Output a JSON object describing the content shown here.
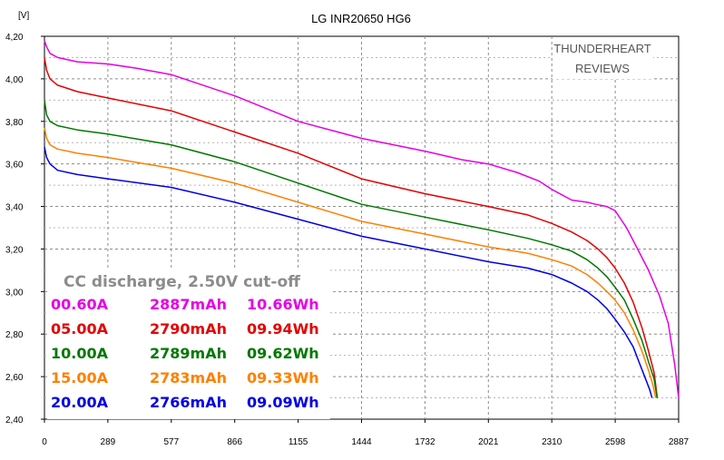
{
  "chart_data": {
    "type": "line",
    "title": "LG INR20650 HG6",
    "ylabel": "[V]",
    "xlabel": "",
    "xlim": [
      0,
      2887
    ],
    "ylim": [
      2.4,
      4.2
    ],
    "x_ticks": [
      "0",
      "289",
      "577",
      "866",
      "1155",
      "1444",
      "1732",
      "2021",
      "2310",
      "2598",
      "2887"
    ],
    "y_ticks": [
      "2,40",
      "2,60",
      "2,80",
      "3,00",
      "3,20",
      "3,40",
      "3,60",
      "3,80",
      "4,00",
      "4,20"
    ],
    "grid": true,
    "watermark": [
      "THUNDERHEART",
      "REVIEWS"
    ],
    "annotation": "CC discharge, 2.50V cut-off",
    "legend_placement": "bottom-left",
    "series": [
      {
        "name": "00.60A",
        "capacity": "2887mAh",
        "energy": "10.66Wh",
        "color": "#e600e6",
        "x": [
          0,
          10,
          25,
          60,
          150,
          289,
          420,
          577,
          866,
          1155,
          1444,
          1732,
          1900,
          2021,
          2150,
          2250,
          2310,
          2400,
          2470,
          2510,
          2560,
          2598,
          2650,
          2700,
          2750,
          2800,
          2840,
          2870,
          2887
        ],
        "y": [
          4.18,
          4.15,
          4.12,
          4.1,
          4.08,
          4.07,
          4.05,
          4.02,
          3.92,
          3.8,
          3.72,
          3.66,
          3.62,
          3.6,
          3.56,
          3.52,
          3.48,
          3.43,
          3.42,
          3.41,
          3.4,
          3.38,
          3.3,
          3.2,
          3.1,
          2.98,
          2.85,
          2.65,
          2.5
        ]
      },
      {
        "name": "05.00A",
        "capacity": "2790mAh",
        "energy": "09.94Wh",
        "color": "#e60000",
        "x": [
          0,
          10,
          25,
          60,
          150,
          289,
          577,
          866,
          1155,
          1444,
          1732,
          2021,
          2200,
          2310,
          2400,
          2470,
          2520,
          2560,
          2598,
          2640,
          2680,
          2720,
          2750,
          2775,
          2790
        ],
        "y": [
          4.1,
          4.04,
          4.0,
          3.97,
          3.94,
          3.91,
          3.85,
          3.75,
          3.65,
          3.53,
          3.46,
          3.4,
          3.36,
          3.32,
          3.28,
          3.24,
          3.2,
          3.16,
          3.11,
          3.04,
          2.95,
          2.83,
          2.72,
          2.62,
          2.5
        ]
      },
      {
        "name": "10.00A",
        "capacity": "2789mAh",
        "energy": "09.62Wh",
        "color": "#007800",
        "x": [
          0,
          10,
          25,
          60,
          150,
          289,
          577,
          866,
          1155,
          1444,
          1732,
          2021,
          2200,
          2310,
          2400,
          2470,
          2520,
          2560,
          2598,
          2640,
          2680,
          2720,
          2750,
          2775,
          2789
        ],
        "y": [
          3.9,
          3.83,
          3.8,
          3.78,
          3.76,
          3.74,
          3.69,
          3.61,
          3.51,
          3.41,
          3.35,
          3.29,
          3.25,
          3.22,
          3.19,
          3.15,
          3.11,
          3.07,
          3.02,
          2.96,
          2.87,
          2.77,
          2.67,
          2.59,
          2.5
        ]
      },
      {
        "name": "15.00A",
        "capacity": "2783mAh",
        "energy": "09.33Wh",
        "color": "#ff8000",
        "x": [
          0,
          10,
          25,
          60,
          150,
          289,
          577,
          866,
          1155,
          1444,
          1732,
          2021,
          2200,
          2310,
          2400,
          2470,
          2520,
          2560,
          2598,
          2640,
          2680,
          2720,
          2750,
          2770,
          2783
        ],
        "y": [
          3.77,
          3.72,
          3.69,
          3.67,
          3.65,
          3.63,
          3.58,
          3.51,
          3.42,
          3.33,
          3.27,
          3.21,
          3.18,
          3.15,
          3.12,
          3.08,
          3.04,
          3.0,
          2.96,
          2.9,
          2.82,
          2.72,
          2.63,
          2.56,
          2.5
        ]
      },
      {
        "name": "20.00A",
        "capacity": "2766mAh",
        "energy": "09.09Wh",
        "color": "#0000e6",
        "x": [
          0,
          10,
          25,
          60,
          150,
          289,
          577,
          866,
          1155,
          1444,
          1732,
          2021,
          2200,
          2310,
          2400,
          2470,
          2520,
          2560,
          2598,
          2640,
          2680,
          2710,
          2740,
          2755,
          2766
        ],
        "y": [
          3.68,
          3.63,
          3.6,
          3.57,
          3.55,
          3.53,
          3.49,
          3.42,
          3.34,
          3.26,
          3.2,
          3.14,
          3.11,
          3.08,
          3.04,
          3.0,
          2.96,
          2.92,
          2.87,
          2.81,
          2.74,
          2.66,
          2.58,
          2.54,
          2.5
        ]
      }
    ]
  }
}
